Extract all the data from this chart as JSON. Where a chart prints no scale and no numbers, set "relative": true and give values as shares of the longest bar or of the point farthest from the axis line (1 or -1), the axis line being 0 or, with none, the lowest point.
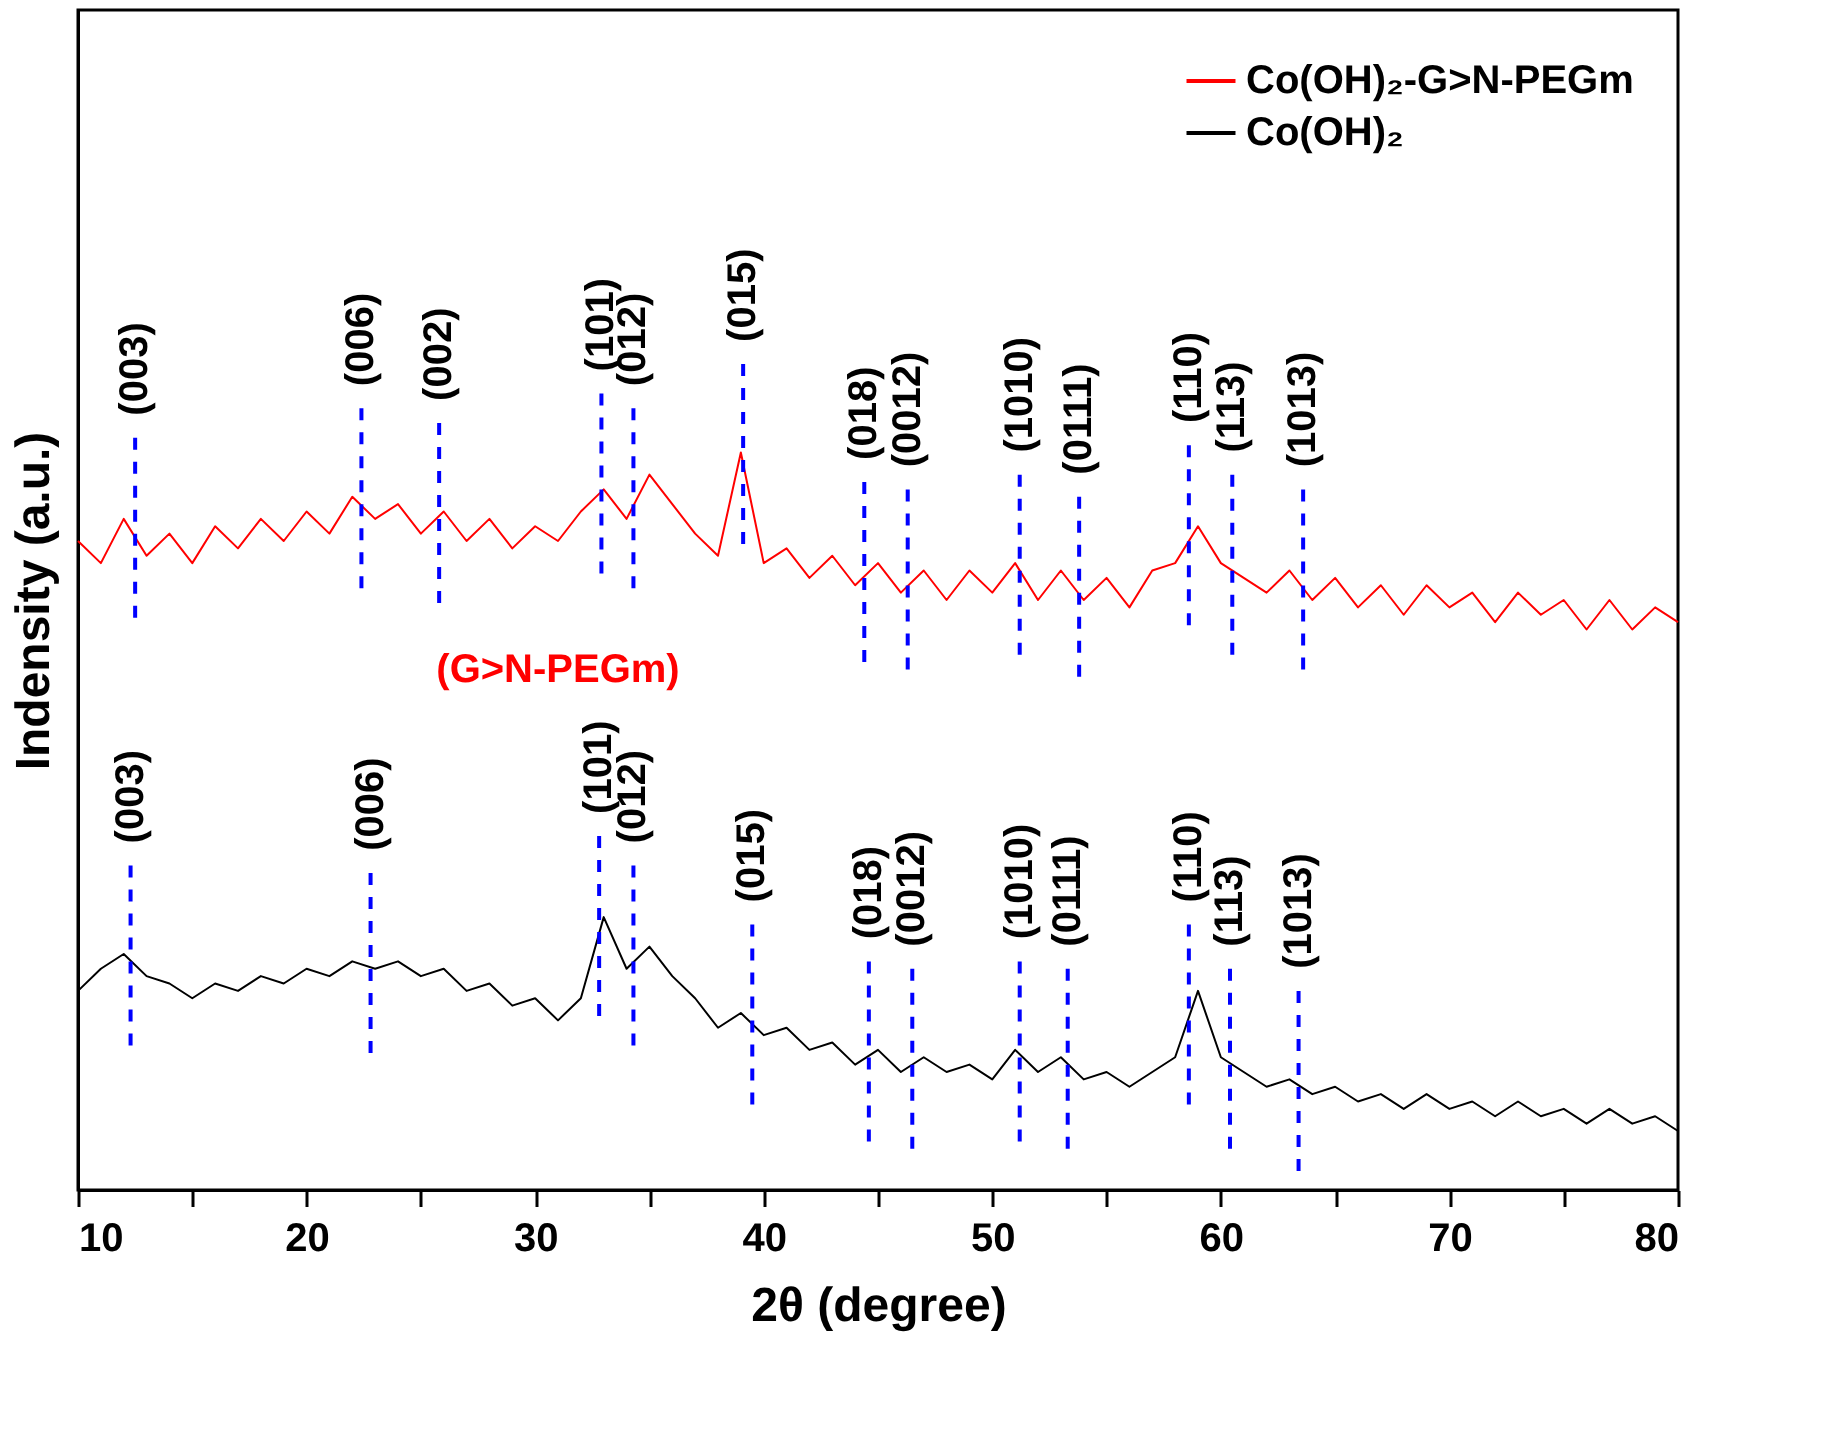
{
  "chart_data": {
    "type": "line",
    "relative": true,
    "xlabel": "2θ (degree)",
    "ylabel": "Indensity (a.u.)",
    "xlim": [
      10,
      80
    ],
    "xticks": [
      10,
      {
        "value": 15,
        "label": null
      },
      20,
      {
        "value": 25,
        "label": null
      },
      30,
      {
        "value": 35,
        "label": null
      },
      40,
      {
        "value": 45,
        "label": null
      },
      50,
      {
        "value": 55,
        "label": null
      },
      60,
      {
        "value": 65,
        "label": null
      },
      70,
      {
        "value": 75,
        "label": null
      },
      80
    ],
    "x": [
      10,
      11,
      12,
      13,
      14,
      15,
      16,
      17,
      18,
      19,
      20,
      21,
      22,
      23,
      24,
      25,
      26,
      27,
      28,
      29,
      30,
      31,
      32,
      33,
      34,
      35,
      36,
      37,
      38,
      39,
      40,
      41,
      42,
      43,
      44,
      45,
      46,
      47,
      48,
      49,
      50,
      51,
      52,
      53,
      54,
      55,
      56,
      57,
      58,
      59,
      60,
      61,
      62,
      63,
      64,
      65,
      66,
      67,
      68,
      69,
      70,
      71,
      72,
      73,
      74,
      75,
      76,
      77,
      78,
      79,
      80
    ],
    "series": [
      {
        "name": "Co(OH)₂-G>N-PEGm",
        "color": "#ff0000",
        "values": [
          0.88,
          0.85,
          0.91,
          0.86,
          0.89,
          0.85,
          0.9,
          0.87,
          0.91,
          0.88,
          0.92,
          0.89,
          0.94,
          0.91,
          0.93,
          0.89,
          0.92,
          0.88,
          0.91,
          0.87,
          0.9,
          0.88,
          0.92,
          0.95,
          0.91,
          0.97,
          0.93,
          0.89,
          0.86,
          1.0,
          0.85,
          0.87,
          0.83,
          0.86,
          0.82,
          0.85,
          0.81,
          0.84,
          0.8,
          0.84,
          0.81,
          0.85,
          0.8,
          0.84,
          0.8,
          0.83,
          0.79,
          0.84,
          0.85,
          0.9,
          0.85,
          0.83,
          0.81,
          0.84,
          0.8,
          0.83,
          0.79,
          0.82,
          0.78,
          0.82,
          0.79,
          0.81,
          0.77,
          0.81,
          0.78,
          0.8,
          0.76,
          0.8,
          0.76,
          0.79,
          0.77
        ]
      },
      {
        "name": "Co(OH)₂",
        "color": "#000000",
        "values": [
          0.27,
          0.3,
          0.32,
          0.29,
          0.28,
          0.26,
          0.28,
          0.27,
          0.29,
          0.28,
          0.3,
          0.29,
          0.31,
          0.3,
          0.31,
          0.29,
          0.3,
          0.27,
          0.28,
          0.25,
          0.26,
          0.23,
          0.26,
          0.37,
          0.3,
          0.33,
          0.29,
          0.26,
          0.22,
          0.24,
          0.21,
          0.22,
          0.19,
          0.2,
          0.17,
          0.19,
          0.16,
          0.18,
          0.16,
          0.17,
          0.15,
          0.19,
          0.16,
          0.18,
          0.15,
          0.16,
          0.14,
          0.16,
          0.18,
          0.27,
          0.18,
          0.16,
          0.14,
          0.15,
          0.13,
          0.14,
          0.12,
          0.13,
          0.11,
          0.13,
          0.11,
          0.12,
          0.1,
          0.12,
          0.1,
          0.11,
          0.09,
          0.11,
          0.09,
          0.1,
          0.08
        ]
      }
    ],
    "annotations": [
      {
        "text": "(003)",
        "x": 12.5,
        "y": 0.89
      },
      {
        "text": "(006)",
        "x": 22.4,
        "y": 0.93
      },
      {
        "text": "(002)",
        "x": 25.8,
        "y": 0.91
      },
      {
        "text": "(101)",
        "x": 32.9,
        "y": 0.95
      },
      {
        "text": "(012)",
        "x": 34.3,
        "y": 0.93
      },
      {
        "text": "(015)",
        "x": 39.1,
        "y": 0.99
      },
      {
        "text": "(018)",
        "x": 44.4,
        "y": 0.83
      },
      {
        "text": "(0012)",
        "x": 46.3,
        "y": 0.82
      },
      {
        "text": "(1010)",
        "x": 51.2,
        "y": 0.84
      },
      {
        "text": "(0111)",
        "x": 53.8,
        "y": 0.81
      },
      {
        "text": "(110)",
        "x": 58.6,
        "y": 0.88
      },
      {
        "text": "(113)",
        "x": 60.5,
        "y": 0.84
      },
      {
        "text": "(1013)",
        "x": 63.6,
        "y": 0.82
      },
      {
        "text": "(003)",
        "x": 12.3,
        "y": 0.31
      },
      {
        "text": "(006)",
        "x": 22.8,
        "y": 0.3
      },
      {
        "text": "(101)",
        "x": 32.8,
        "y": 0.35
      },
      {
        "text": "(012)",
        "x": 34.3,
        "y": 0.31
      },
      {
        "text": "(015)",
        "x": 39.5,
        "y": 0.23
      },
      {
        "text": "(018)",
        "x": 44.6,
        "y": 0.18
      },
      {
        "text": "(0012)",
        "x": 46.5,
        "y": 0.17
      },
      {
        "text": "(1010)",
        "x": 51.2,
        "y": 0.18
      },
      {
        "text": "(0111)",
        "x": 53.3,
        "y": 0.17
      },
      {
        "text": "(110)",
        "x": 58.6,
        "y": 0.23
      },
      {
        "text": "(113)",
        "x": 60.4,
        "y": 0.17
      },
      {
        "text": "(1013)",
        "x": 63.4,
        "y": 0.14
      },
      "(G>N-PEGm)"
    ],
    "legend": "top right",
    "grid": false
  }
}
